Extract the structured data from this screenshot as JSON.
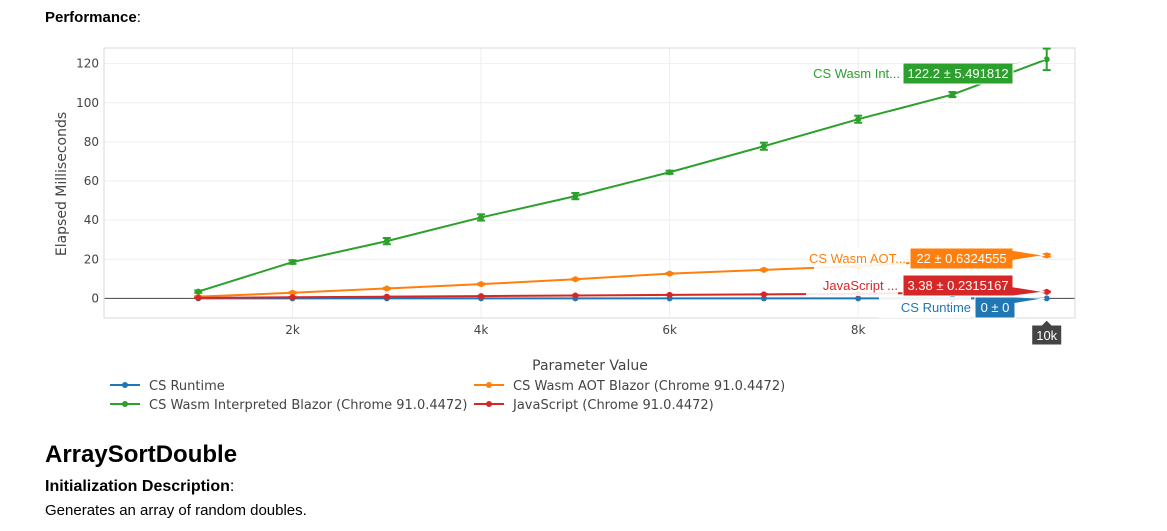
{
  "section": {
    "label": "Performance",
    "suffix": ":"
  },
  "benchmark": {
    "title": "ArraySortDouble",
    "init_label": "Initialization Description",
    "init_suffix": ":",
    "init_text": "Generates an array of random doubles."
  },
  "chart_data": {
    "type": "line",
    "xlabel": "Parameter Value",
    "ylabel": "Elapsed Milliseconds",
    "xlim": [
      0,
      10300
    ],
    "ylim": [
      -10,
      128
    ],
    "x_ticks": [
      {
        "v": 2000,
        "label": "2k"
      },
      {
        "v": 4000,
        "label": "4k"
      },
      {
        "v": 6000,
        "label": "6k"
      },
      {
        "v": 8000,
        "label": "8k"
      }
    ],
    "y_ticks": [
      0,
      20,
      40,
      60,
      80,
      100,
      120
    ],
    "grid": true,
    "legend_position": "bottom",
    "x": [
      1000,
      2000,
      3000,
      4000,
      5000,
      6000,
      7000,
      8000,
      9000,
      10000
    ],
    "series": [
      {
        "name": "CS Runtime",
        "color": "#1f77b4",
        "values": [
          0,
          0,
          0,
          0,
          0,
          0,
          0,
          0,
          0,
          0
        ],
        "errors": [
          0,
          0,
          0,
          0,
          0,
          0,
          0,
          0,
          0,
          0
        ]
      },
      {
        "name": "CS Wasm Interpreted Blazor (Chrome 91.0.4472)",
        "color": "#2ca02c",
        "values": [
          3.5,
          18.6,
          29.3,
          41.4,
          52.3,
          64.5,
          77.8,
          91.6,
          104.2,
          122.2
        ],
        "errors": [
          0.6,
          0.9,
          1.6,
          1.6,
          1.6,
          0.8,
          1.8,
          1.8,
          1.3,
          5.491812
        ]
      },
      {
        "name": "CS Wasm AOT Blazor (Chrome 91.0.4472)",
        "color": "#ff7f0e",
        "values": [
          0.9,
          2.9,
          5.1,
          7.3,
          9.8,
          12.7,
          14.6,
          16.5,
          19.4,
          22
        ],
        "errors": [
          0.3,
          0.3,
          0.3,
          0.3,
          0.3,
          0.3,
          0.3,
          0.3,
          0.3,
          0.6324555
        ]
      },
      {
        "name": "JavaScript (Chrome 91.0.4472)",
        "color": "#d62728",
        "values": [
          0.3,
          0.6,
          0.9,
          1.2,
          1.5,
          1.8,
          2.1,
          2.4,
          2.9,
          3.38
        ],
        "errors": [
          0.1,
          0.1,
          0.1,
          0.1,
          0.1,
          0.1,
          0.1,
          0.1,
          0.1,
          0.2315167
        ]
      }
    ],
    "hover": {
      "x_label": "10k",
      "labels": [
        {
          "series": 1,
          "name_text": "CS Wasm Int...",
          "value_text": "122.2 ± 5.491812"
        },
        {
          "series": 2,
          "name_text": "CS Wasm AOT...",
          "value_text": "22 ± 0.6324555"
        },
        {
          "series": 3,
          "name_text": "JavaScript ...",
          "value_text": "3.38 ± 0.2315167"
        },
        {
          "series": 0,
          "name_text": "CS Runtime",
          "value_text": "0 ± 0"
        }
      ]
    }
  }
}
